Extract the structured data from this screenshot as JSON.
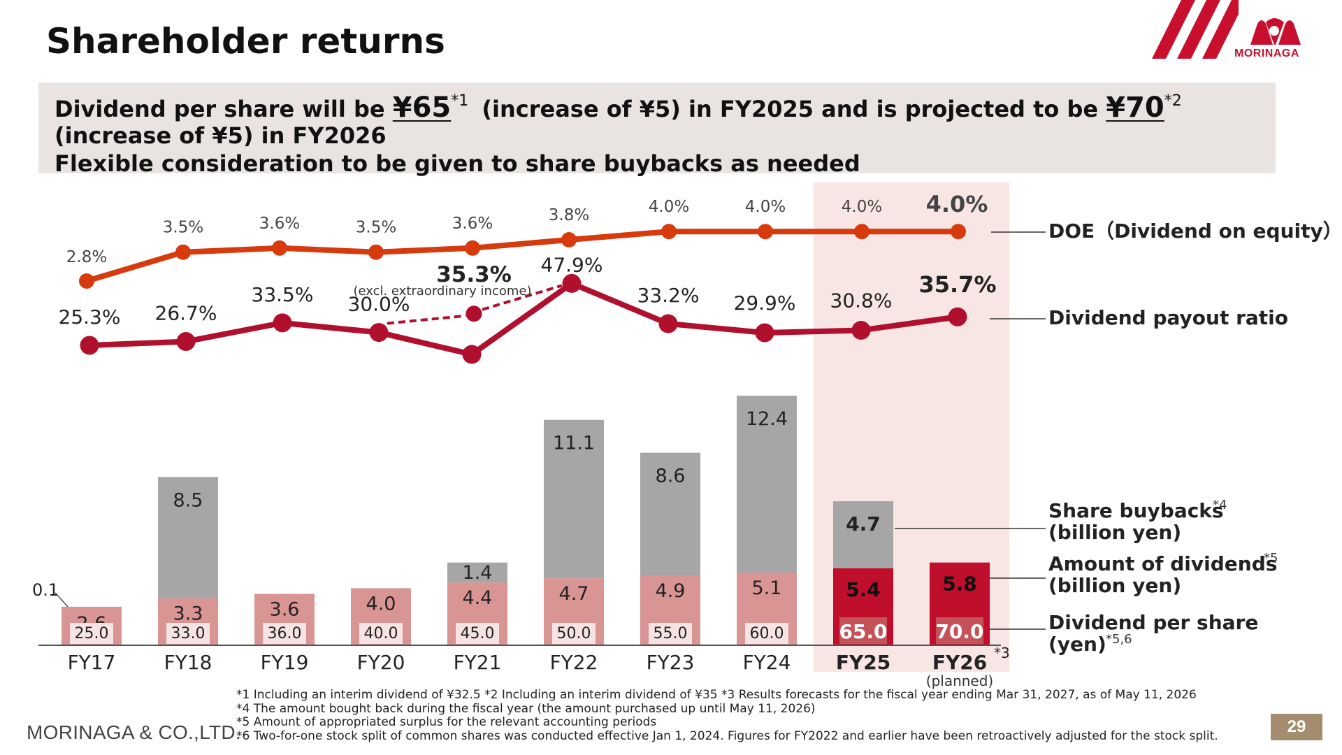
{
  "title": "Shareholder returns",
  "logo": {
    "text": "MORINAGA"
  },
  "summary": {
    "line1_a": "Dividend per share will be",
    "line1_amount1": "¥65",
    "line1_note1": "*1",
    "line1_b": "(increase of ¥5) in FY2025 and is projected to be",
    "line1_amount2": "¥70",
    "line1_note2": "*2",
    "line1_c": "(increase of ¥5) in FY2026",
    "line2": "Flexible consideration to be given to share buybacks as needed"
  },
  "chart_data": {
    "type": "bar",
    "categories": [
      "FY17",
      "FY18",
      "FY19",
      "FY20",
      "FY21",
      "FY22",
      "FY23",
      "FY24",
      "FY25",
      "FY26"
    ],
    "category_notes": {
      "FY26": {
        "superscript": "*3",
        "subtitle": "(planned)"
      }
    },
    "highlight_categories": [
      "FY25",
      "FY26"
    ],
    "stacked_bars": [
      {
        "name": "Amount of dividends",
        "values": [
          2.6,
          3.3,
          3.6,
          4.0,
          4.4,
          4.7,
          4.9,
          5.1,
          5.4,
          5.8
        ],
        "labels": [
          "2.6",
          "3.3",
          "3.6",
          "4.0",
          "4.4",
          "4.7",
          "4.9",
          "5.1",
          "5.4",
          "5.8"
        ]
      },
      {
        "name": "Share buybacks",
        "values": [
          0.1,
          8.5,
          0,
          0,
          1.4,
          11.1,
          8.6,
          12.4,
          4.7,
          0
        ],
        "labels": [
          "0.1",
          "8.5",
          "",
          "",
          "1.4",
          "11.1",
          "8.6",
          "12.4",
          "4.7",
          ""
        ]
      }
    ],
    "dividend_per_share": {
      "name": "Dividend per share",
      "values": [
        25.0,
        33.0,
        36.0,
        40.0,
        45.0,
        50.0,
        55.0,
        60.0,
        65.0,
        70.0
      ],
      "labels": [
        "25.0",
        "33.0",
        "36.0",
        "40.0",
        "45.0",
        "50.0",
        "55.0",
        "60.0",
        "65.0",
        "70.0"
      ]
    },
    "lines": [
      {
        "name": "DOE",
        "values": [
          2.8,
          3.5,
          3.6,
          3.5,
          3.6,
          3.8,
          4.0,
          4.0,
          4.0,
          4.0
        ],
        "labels": [
          "2.8%",
          "3.5%",
          "3.6%",
          "3.5%",
          "3.6%",
          "3.8%",
          "4.0%",
          "4.0%",
          "4.0%",
          "4.0%"
        ],
        "color": "#d63a0d"
      },
      {
        "name": "Dividend payout ratio",
        "values": [
          25.3,
          26.7,
          33.5,
          30.0,
          22.0,
          47.9,
          33.2,
          29.9,
          30.8,
          35.7
        ],
        "labels": [
          "25.3%",
          "26.7%",
          "33.5%",
          "30.0%",
          "",
          "47.9%",
          "33.2%",
          "29.9%",
          "30.8%",
          "35.7%"
        ],
        "color": "#b0102e"
      }
    ],
    "alternate_point": {
      "series": "Dividend payout ratio",
      "category": "FY21",
      "value": 35.3,
      "label": "35.3%",
      "note": "(excl. extraordinary income)"
    },
    "legend": [
      {
        "text": "DOE（Dividend on equity）"
      },
      {
        "text": "Dividend payout ratio"
      },
      {
        "text": "Share buybacks",
        "sup": "*4",
        "unit": "(billion yen)"
      },
      {
        "text": "Amount of dividends",
        "sup": "*5",
        "unit": "(billion yen)"
      },
      {
        "text": "Dividend per share",
        "unit": "(yen)",
        "unit_sup": "*5,6"
      }
    ],
    "colors": {
      "dividends": "#d99594",
      "dividends_highlight": "#c00e2d",
      "buybacks": "#a6a6a6",
      "dps_box": "#f6e4e4",
      "dps_box_highlight": "#c55258",
      "highlight_band": "#f8e6e4"
    }
  },
  "footnotes": [
    "*1  Including an interim dividend of ¥32.5    *2  Including an interim dividend of ¥35    *3  Results forecasts for the fiscal year ending Mar 31, 2027, as of May 11, 2026",
    "*4  The amount bought back during the fiscal year (the amount purchased up until May 11, 2026)",
    "*5  Amount of appropriated surplus for the relevant accounting periods",
    "*6  Two-for-one stock split of common shares was conducted effective Jan 1, 2024. Figures for FY2022 and earlier have been retroactively adjusted for the stock split."
  ],
  "company": "MORINAGA & CO.,LTD.",
  "page_number": "29"
}
